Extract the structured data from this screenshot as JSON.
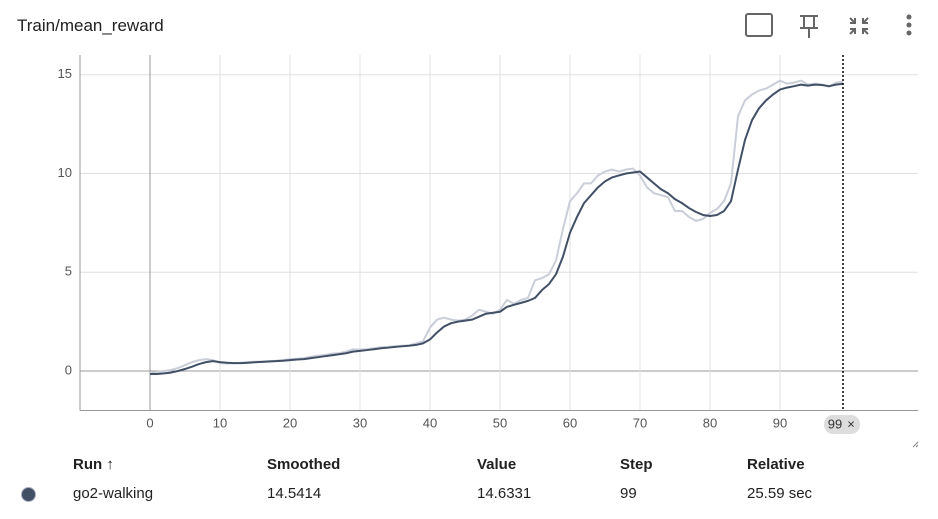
{
  "chart_data": {
    "type": "line",
    "title": "Train/mean_reward",
    "x": [
      0,
      1,
      2,
      3,
      4,
      5,
      6,
      7,
      8,
      9,
      10,
      11,
      12,
      13,
      14,
      15,
      16,
      17,
      18,
      19,
      20,
      21,
      22,
      23,
      24,
      25,
      26,
      27,
      28,
      29,
      30,
      31,
      32,
      33,
      34,
      35,
      36,
      37,
      38,
      39,
      40,
      41,
      42,
      43,
      44,
      45,
      46,
      47,
      48,
      49,
      50,
      51,
      52,
      53,
      54,
      55,
      56,
      57,
      58,
      59,
      60,
      61,
      62,
      63,
      64,
      65,
      66,
      67,
      68,
      69,
      70,
      71,
      72,
      73,
      74,
      75,
      76,
      77,
      78,
      79,
      80,
      81,
      82,
      83,
      84,
      85,
      86,
      87,
      88,
      89,
      90,
      91,
      92,
      93,
      94,
      95,
      96,
      97,
      98,
      99
    ],
    "series": [
      {
        "color": "#c9ced8",
        "values": [
          -0.1,
          -0.05,
          0.0,
          0.05,
          0.15,
          0.3,
          0.45,
          0.55,
          0.6,
          0.55,
          0.4,
          0.38,
          0.4,
          0.42,
          0.45,
          0.47,
          0.48,
          0.5,
          0.52,
          0.55,
          0.6,
          0.62,
          0.65,
          0.72,
          0.78,
          0.82,
          0.88,
          0.9,
          0.98,
          1.1,
          1.08,
          1.1,
          1.15,
          1.2,
          1.22,
          1.25,
          1.28,
          1.3,
          1.4,
          1.5,
          2.2,
          2.6,
          2.7,
          2.6,
          2.55,
          2.6,
          2.8,
          3.1,
          3.0,
          2.9,
          3.1,
          3.6,
          3.4,
          3.6,
          3.7,
          4.6,
          4.7,
          4.9,
          5.6,
          7.2,
          8.6,
          9.0,
          9.5,
          9.5,
          9.9,
          10.1,
          10.2,
          10.1,
          10.2,
          10.25,
          9.9,
          9.3,
          9.0,
          8.9,
          8.8,
          8.1,
          8.1,
          7.8,
          7.6,
          7.7,
          8.0,
          8.2,
          8.6,
          9.5,
          12.9,
          13.7,
          14.0,
          14.2,
          14.3,
          14.5,
          14.7,
          14.55,
          14.6,
          14.7,
          14.5,
          14.55,
          14.5,
          14.4,
          14.6,
          14.6331
        ]
      },
      {
        "color": "#425066",
        "values": [
          -0.15,
          -0.15,
          -0.12,
          -0.08,
          0.0,
          0.1,
          0.22,
          0.35,
          0.45,
          0.5,
          0.45,
          0.42,
          0.4,
          0.4,
          0.42,
          0.44,
          0.46,
          0.48,
          0.5,
          0.52,
          0.55,
          0.58,
          0.6,
          0.65,
          0.7,
          0.75,
          0.8,
          0.85,
          0.9,
          0.98,
          1.02,
          1.06,
          1.1,
          1.15,
          1.18,
          1.22,
          1.25,
          1.28,
          1.32,
          1.4,
          1.6,
          1.95,
          2.25,
          2.42,
          2.5,
          2.55,
          2.6,
          2.75,
          2.9,
          2.95,
          3.0,
          3.25,
          3.35,
          3.45,
          3.55,
          3.7,
          4.1,
          4.4,
          4.9,
          5.8,
          7.0,
          7.8,
          8.5,
          8.9,
          9.3,
          9.6,
          9.8,
          9.9,
          10.0,
          10.05,
          10.1,
          9.8,
          9.5,
          9.2,
          9.0,
          8.7,
          8.5,
          8.25,
          8.05,
          7.9,
          7.85,
          7.9,
          8.1,
          8.6,
          10.2,
          11.7,
          12.7,
          13.3,
          13.7,
          14.0,
          14.25,
          14.35,
          14.42,
          14.5,
          14.45,
          14.5,
          14.48,
          14.42,
          14.5,
          14.5414
        ]
      }
    ],
    "xlim": [
      -10,
      110
    ],
    "ylim": [
      -2,
      16
    ],
    "xticks": [
      0,
      10,
      20,
      30,
      40,
      50,
      60,
      70,
      80,
      90
    ],
    "yticks": [
      0,
      5,
      10,
      15
    ],
    "grid": true,
    "cursor": 99
  },
  "table": {
    "headers": [
      "Run ↑",
      "Smoothed",
      "Value",
      "Step",
      "Relative"
    ],
    "rows": [
      [
        "go2-walking",
        "14.5414",
        "14.6331",
        "99",
        "25.59 sec"
      ]
    ]
  }
}
